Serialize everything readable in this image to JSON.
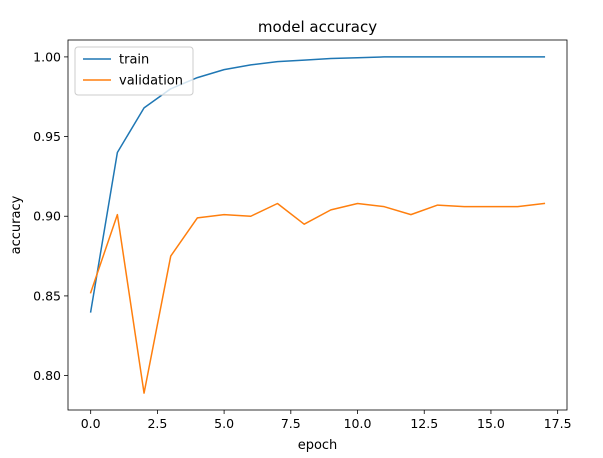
{
  "chart_data": {
    "type": "line",
    "title": "model accuracy",
    "xlabel": "epoch",
    "ylabel": "accuracy",
    "xlim": [
      -0.85,
      17.85
    ],
    "ylim": [
      0.7784,
      1.0106
    ],
    "xticks": [
      0.0,
      2.5,
      5.0,
      7.5,
      10.0,
      12.5,
      15.0,
      17.5
    ],
    "xtick_labels": [
      "0.0",
      "2.5",
      "5.0",
      "7.5",
      "10.0",
      "12.5",
      "15.0",
      "17.5"
    ],
    "yticks": [
      0.8,
      0.85,
      0.9,
      0.95,
      1.0
    ],
    "ytick_labels": [
      "0.80",
      "0.85",
      "0.90",
      "0.95",
      "1.00"
    ],
    "grid": false,
    "legend_position": "top-left",
    "x": [
      0,
      1,
      2,
      3,
      4,
      5,
      6,
      7,
      8,
      9,
      10,
      11,
      12,
      13,
      14,
      15,
      16,
      17
    ],
    "series": [
      {
        "name": "train",
        "color": "#1f77b4",
        "values": [
          0.84,
          0.94,
          0.968,
          0.98,
          0.987,
          0.992,
          0.995,
          0.997,
          0.998,
          0.999,
          0.9995,
          1.0,
          1.0,
          1.0,
          1.0,
          1.0,
          1.0,
          1.0
        ]
      },
      {
        "name": "validation",
        "color": "#ff7f0e",
        "values": [
          0.852,
          0.901,
          0.789,
          0.875,
          0.899,
          0.901,
          0.9,
          0.908,
          0.895,
          0.904,
          0.908,
          0.906,
          0.901,
          0.907,
          0.906,
          0.906,
          0.906,
          0.908
        ]
      }
    ]
  }
}
